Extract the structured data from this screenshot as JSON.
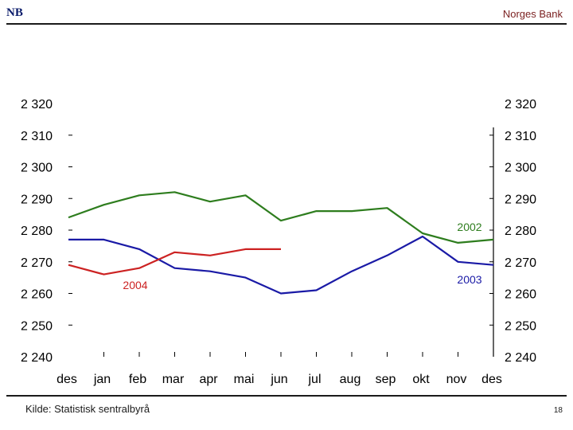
{
  "header": {
    "logo_text": "NB",
    "bank_name": "Norges Bank"
  },
  "footer": {
    "source": "Kilde: Statistisk sentralbyrå",
    "page_number": "18"
  },
  "colors": {
    "2002": "#2e7d1e",
    "2003": "#1a1aa6",
    "2004": "#cc2222"
  },
  "chart_data": {
    "type": "line",
    "title": "",
    "xlabel": "",
    "ylabel": "",
    "categories": [
      "des",
      "jan",
      "feb",
      "mar",
      "apr",
      "mai",
      "jun",
      "jul",
      "aug",
      "sep",
      "okt",
      "nov",
      "des"
    ],
    "ylim": [
      2240,
      2320
    ],
    "yticks": [
      2240,
      2250,
      2260,
      2270,
      2280,
      2290,
      2300,
      2310,
      2320
    ],
    "ytick_labels": [
      "2 240",
      "2 250",
      "2 260",
      "2 270",
      "2 280",
      "2 290",
      "2 300",
      "2 310",
      "2 320"
    ],
    "series": [
      {
        "name": "2002",
        "values": [
          2284,
          2288,
          2291,
          2292,
          2289,
          2291,
          2283,
          2286,
          2286,
          2287,
          2279,
          2276,
          2277
        ]
      },
      {
        "name": "2003",
        "values": [
          2277,
          2277,
          2274,
          2268,
          2267,
          2265,
          2260,
          2261,
          2267,
          2272,
          2278,
          2270,
          2269
        ]
      },
      {
        "name": "2004",
        "values": [
          2269,
          2266,
          2268,
          2273,
          2272,
          2274,
          2274,
          null,
          null,
          null,
          null,
          null,
          null
        ]
      }
    ],
    "annotations": [
      {
        "text": "2002",
        "series": "2002"
      },
      {
        "text": "2003",
        "series": "2003"
      },
      {
        "text": "2004",
        "series": "2004"
      }
    ]
  }
}
